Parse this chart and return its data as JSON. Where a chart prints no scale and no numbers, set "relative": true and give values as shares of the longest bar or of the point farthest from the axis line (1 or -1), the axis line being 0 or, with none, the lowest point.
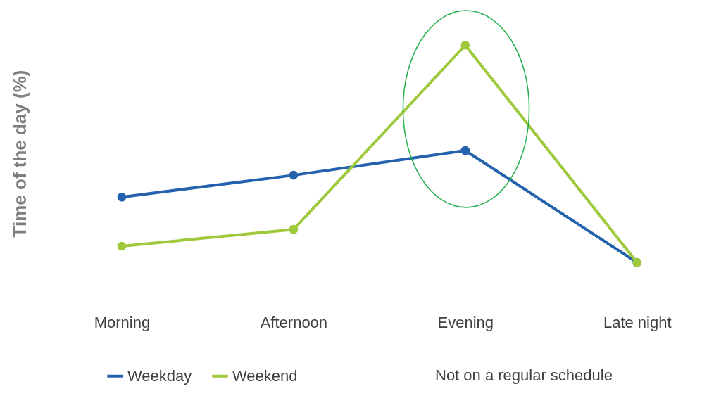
{
  "chart_data": {
    "type": "line",
    "relative": true,
    "ylabel": "Time of the day (%)",
    "categories": [
      "Morning",
      "Afternoon",
      "Evening",
      "Late night"
    ],
    "series": [
      {
        "name": "Weekday",
        "color": "#2462ad",
        "values": [
          0.403,
          0.489,
          0.586,
          0.146
        ]
      },
      {
        "name": "Weekend",
        "color": "#9dc93a",
        "values": [
          0.21,
          0.276,
          1,
          0.146
        ]
      }
    ],
    "annotations": [
      "Not on a regular schedule"
    ],
    "legend": "bottom",
    "marker": "circle",
    "line_style": "solid",
    "grid": false
  }
}
